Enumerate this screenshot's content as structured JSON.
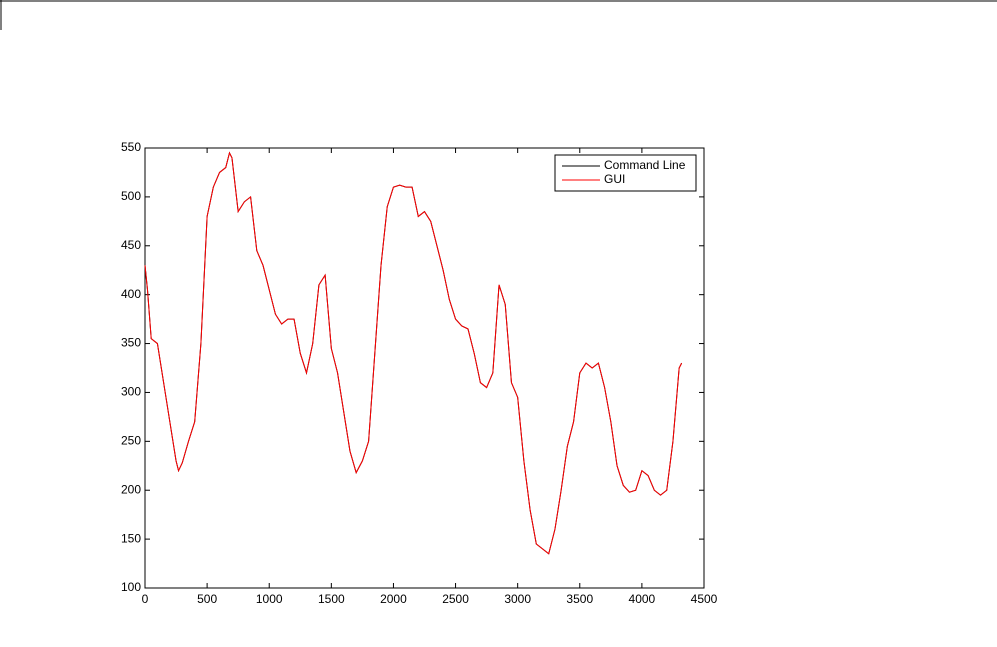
{
  "chart_data": {
    "type": "line",
    "x": [
      0,
      20,
      50,
      100,
      150,
      200,
      250,
      270,
      300,
      350,
      400,
      450,
      500,
      550,
      600,
      650,
      680,
      700,
      750,
      800,
      850,
      900,
      950,
      1000,
      1050,
      1100,
      1150,
      1200,
      1250,
      1300,
      1350,
      1400,
      1450,
      1500,
      1550,
      1600,
      1650,
      1700,
      1750,
      1800,
      1850,
      1900,
      1950,
      2000,
      2050,
      2100,
      2150,
      2200,
      2250,
      2300,
      2350,
      2400,
      2450,
      2500,
      2550,
      2600,
      2650,
      2700,
      2750,
      2800,
      2850,
      2900,
      2950,
      3000,
      3050,
      3100,
      3150,
      3200,
      3250,
      3300,
      3350,
      3400,
      3450,
      3500,
      3550,
      3600,
      3650,
      3700,
      3750,
      3800,
      3850,
      3900,
      3950,
      4000,
      4050,
      4100,
      4150,
      4200,
      4250,
      4300,
      4320
    ],
    "series": [
      {
        "name": "Command Line",
        "color": "#000000",
        "values": [
          430,
          405,
          355,
          350,
          310,
          270,
          230,
          220,
          228,
          250,
          270,
          350,
          480,
          510,
          525,
          530,
          545,
          540,
          485,
          495,
          500,
          445,
          430,
          405,
          380,
          370,
          375,
          375,
          340,
          320,
          350,
          410,
          420,
          345,
          320,
          280,
          240,
          218,
          230,
          250,
          340,
          430,
          490,
          510,
          512,
          510,
          510,
          480,
          485,
          475,
          450,
          425,
          395,
          375,
          368,
          365,
          340,
          310,
          305,
          320,
          410,
          390,
          310,
          295,
          230,
          180,
          145,
          140,
          135,
          160,
          200,
          245,
          270,
          320,
          330,
          325,
          330,
          305,
          270,
          225,
          205,
          198,
          200,
          220,
          215,
          200,
          195,
          200,
          250,
          325,
          330
        ]
      },
      {
        "name": "GUI",
        "color": "#ff0000",
        "values": [
          430,
          405,
          355,
          350,
          310,
          270,
          230,
          220,
          228,
          250,
          270,
          350,
          480,
          510,
          525,
          530,
          545,
          540,
          485,
          495,
          500,
          445,
          430,
          405,
          380,
          370,
          375,
          375,
          340,
          320,
          350,
          410,
          420,
          345,
          320,
          280,
          240,
          218,
          230,
          250,
          340,
          430,
          490,
          510,
          512,
          510,
          510,
          480,
          485,
          475,
          450,
          425,
          395,
          375,
          368,
          365,
          340,
          310,
          305,
          320,
          410,
          390,
          310,
          295,
          230,
          180,
          145,
          140,
          135,
          160,
          200,
          245,
          270,
          320,
          330,
          325,
          330,
          305,
          270,
          225,
          205,
          198,
          200,
          220,
          215,
          200,
          195,
          200,
          250,
          325,
          330
        ]
      }
    ],
    "xlim": [
      0,
      4500
    ],
    "xticks": [
      0,
      500,
      1000,
      1500,
      2000,
      2500,
      3000,
      3500,
      4000,
      4500
    ],
    "ylim": [
      100,
      550
    ],
    "yticks": [
      100,
      150,
      200,
      250,
      300,
      350,
      400,
      450,
      500,
      550
    ],
    "legend": "northeast"
  }
}
